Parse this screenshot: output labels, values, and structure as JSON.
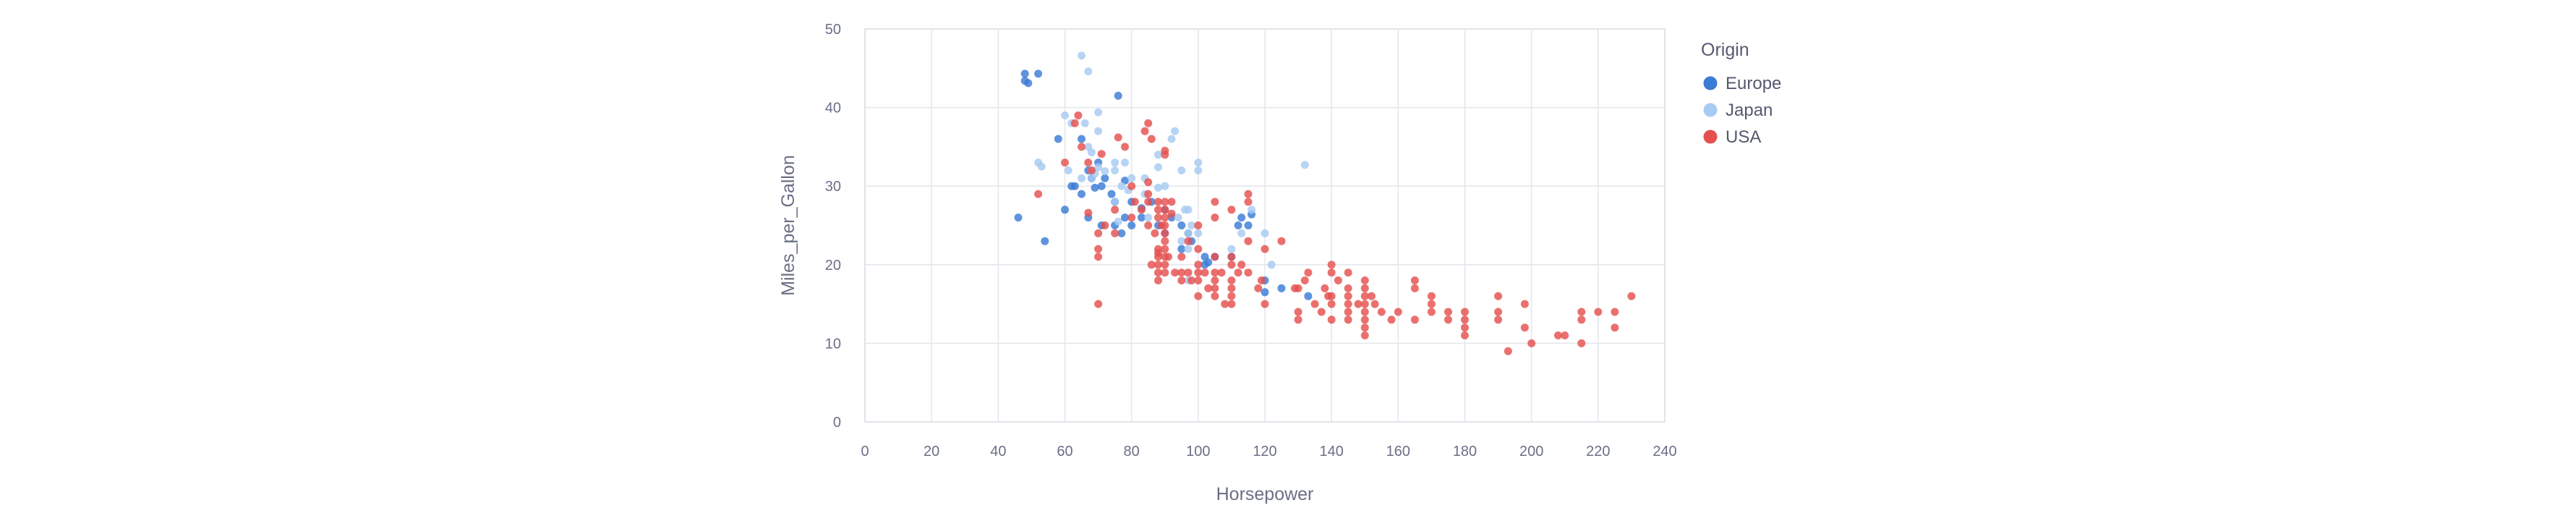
{
  "chart_data": {
    "type": "scatter",
    "xlabel": "Horsepower",
    "ylabel": "Miles_per_Gallon",
    "xlim": [
      0,
      240
    ],
    "ylim": [
      0,
      50
    ],
    "x_ticks": [
      "0",
      "20",
      "40",
      "60",
      "80",
      "100",
      "120",
      "140",
      "160",
      "180",
      "200",
      "220",
      "240"
    ],
    "y_ticks": [
      "0",
      "10",
      "20",
      "30",
      "40",
      "50"
    ],
    "grid": true,
    "legend": {
      "title": "Origin",
      "placement": "right",
      "entries": [
        "Europe",
        "Japan",
        "USA"
      ]
    },
    "series": [
      {
        "name": "Europe",
        "color": "#3a7bd5",
        "points": [
          [
            46,
            26
          ],
          [
            48,
            43.4
          ],
          [
            48,
            44.3
          ],
          [
            49,
            43.1
          ],
          [
            52,
            44.3
          ],
          [
            54,
            23
          ],
          [
            58,
            36
          ],
          [
            60,
            27
          ],
          [
            62,
            30
          ],
          [
            63,
            30
          ],
          [
            65,
            29
          ],
          [
            65,
            36
          ],
          [
            67,
            26
          ],
          [
            67,
            32
          ],
          [
            68,
            31
          ],
          [
            69,
            29.8
          ],
          [
            70,
            33
          ],
          [
            71,
            30
          ],
          [
            71,
            25
          ],
          [
            72,
            31
          ],
          [
            74,
            29
          ],
          [
            75,
            28
          ],
          [
            75,
            25
          ],
          [
            76,
            41.5
          ],
          [
            77,
            24
          ],
          [
            78,
            30.7
          ],
          [
            78,
            26
          ],
          [
            80,
            28
          ],
          [
            80,
            25
          ],
          [
            83,
            27.2
          ],
          [
            83,
            26
          ],
          [
            86,
            28
          ],
          [
            88,
            25
          ],
          [
            90,
            27
          ],
          [
            90,
            24
          ],
          [
            92,
            26
          ],
          [
            95,
            22
          ],
          [
            95,
            25
          ],
          [
            97,
            24
          ],
          [
            98,
            23
          ],
          [
            102,
            20
          ],
          [
            102,
            21
          ],
          [
            103,
            20.3
          ],
          [
            105,
            21
          ],
          [
            110,
            21
          ],
          [
            112,
            25
          ],
          [
            113,
            26
          ],
          [
            115,
            25
          ],
          [
            116,
            26.4
          ],
          [
            120,
            18
          ],
          [
            120,
            16.5
          ],
          [
            125,
            17
          ],
          [
            133,
            16
          ]
        ]
      },
      {
        "name": "Japan",
        "color": "#a7cbf2",
        "points": [
          [
            52,
            33
          ],
          [
            53,
            32.5
          ],
          [
            60,
            39
          ],
          [
            61,
            32
          ],
          [
            62,
            38
          ],
          [
            65,
            31
          ],
          [
            65,
            46.6
          ],
          [
            66,
            38
          ],
          [
            67,
            44.6
          ],
          [
            67,
            35
          ],
          [
            68,
            31
          ],
          [
            68,
            32
          ],
          [
            68,
            34.3
          ],
          [
            69,
            31.6
          ],
          [
            70,
            37
          ],
          [
            70,
            39.4
          ],
          [
            70,
            32.4
          ],
          [
            72,
            31.9
          ],
          [
            75,
            32
          ],
          [
            75,
            33
          ],
          [
            75,
            28
          ],
          [
            76,
            25.5
          ],
          [
            77,
            30
          ],
          [
            78,
            33
          ],
          [
            79,
            29.5
          ],
          [
            80,
            31
          ],
          [
            84,
            29
          ],
          [
            84,
            31
          ],
          [
            85,
            26
          ],
          [
            88,
            29.8
          ],
          [
            88,
            32.4
          ],
          [
            88,
            34
          ],
          [
            90,
            30
          ],
          [
            92,
            36
          ],
          [
            93,
            37
          ],
          [
            94,
            26
          ],
          [
            95,
            23
          ],
          [
            95,
            32
          ],
          [
            96,
            27
          ],
          [
            97,
            22
          ],
          [
            97,
            24
          ],
          [
            97,
            18
          ],
          [
            97,
            27
          ],
          [
            98,
            25
          ],
          [
            100,
            33
          ],
          [
            100,
            24
          ],
          [
            100,
            32
          ],
          [
            110,
            22
          ],
          [
            113,
            24
          ],
          [
            116,
            27
          ],
          [
            120,
            24
          ],
          [
            122,
            20
          ],
          [
            132,
            32.7
          ]
        ]
      },
      {
        "name": "USA",
        "color": "#e5504f",
        "points": [
          [
            52,
            29
          ],
          [
            60,
            33
          ],
          [
            63,
            38
          ],
          [
            64,
            39
          ],
          [
            65,
            35
          ],
          [
            67,
            33
          ],
          [
            67,
            26.6
          ],
          [
            68,
            32
          ],
          [
            70,
            22
          ],
          [
            70,
            24
          ],
          [
            70,
            21
          ],
          [
            70,
            15
          ],
          [
            71,
            34.1
          ],
          [
            72,
            25
          ],
          [
            75,
            27
          ],
          [
            75,
            24
          ],
          [
            76,
            36.2
          ],
          [
            78,
            35
          ],
          [
            80,
            30
          ],
          [
            80,
            26
          ],
          [
            81,
            28
          ],
          [
            83,
            27
          ],
          [
            84,
            37
          ],
          [
            85,
            30.5
          ],
          [
            85,
            29
          ],
          [
            85,
            28
          ],
          [
            85,
            38
          ],
          [
            85,
            25
          ],
          [
            86,
            36
          ],
          [
            86,
            20
          ],
          [
            87,
            24
          ],
          [
            88,
            28
          ],
          [
            88,
            27
          ],
          [
            88,
            26
          ],
          [
            88,
            22
          ],
          [
            88,
            21
          ],
          [
            88,
            20
          ],
          [
            88,
            19
          ],
          [
            88,
            18
          ],
          [
            88,
            21.5
          ],
          [
            89,
            25
          ],
          [
            90,
            28
          ],
          [
            90,
            27
          ],
          [
            90,
            26
          ],
          [
            90,
            25
          ],
          [
            90,
            24
          ],
          [
            90,
            23
          ],
          [
            90,
            22
          ],
          [
            90,
            21
          ],
          [
            90,
            20
          ],
          [
            90,
            19
          ],
          [
            90,
            34.5
          ],
          [
            90,
            34
          ],
          [
            91,
            21
          ],
          [
            92,
            28
          ],
          [
            92,
            26.5
          ],
          [
            93,
            19
          ],
          [
            95,
            21
          ],
          [
            95,
            19
          ],
          [
            95,
            18
          ],
          [
            97,
            23
          ],
          [
            97,
            19
          ],
          [
            98,
            18
          ],
          [
            100,
            22
          ],
          [
            100,
            20
          ],
          [
            100,
            19
          ],
          [
            100,
            18
          ],
          [
            100,
            16
          ],
          [
            100,
            25
          ],
          [
            102,
            19
          ],
          [
            103,
            17
          ],
          [
            105,
            21
          ],
          [
            105,
            19
          ],
          [
            105,
            18
          ],
          [
            105,
            17
          ],
          [
            105,
            16
          ],
          [
            105,
            26
          ],
          [
            105,
            28
          ],
          [
            107,
            19
          ],
          [
            108,
            15
          ],
          [
            110,
            21
          ],
          [
            110,
            18
          ],
          [
            110,
            17
          ],
          [
            110,
            16
          ],
          [
            110,
            15
          ],
          [
            110,
            20
          ],
          [
            110,
            27
          ],
          [
            112,
            19
          ],
          [
            113,
            20
          ],
          [
            115,
            19
          ],
          [
            115,
            23
          ],
          [
            115,
            28
          ],
          [
            115,
            29
          ],
          [
            118,
            17
          ],
          [
            119,
            18
          ],
          [
            120,
            22
          ],
          [
            120,
            15
          ],
          [
            125,
            23
          ],
          [
            129,
            17
          ],
          [
            130,
            17
          ],
          [
            130,
            13
          ],
          [
            130,
            14
          ],
          [
            132,
            18
          ],
          [
            133,
            19
          ],
          [
            135,
            15
          ],
          [
            137,
            14
          ],
          [
            138,
            17
          ],
          [
            139,
            16
          ],
          [
            140,
            20
          ],
          [
            140,
            19
          ],
          [
            140,
            16
          ],
          [
            140,
            15
          ],
          [
            140,
            13
          ],
          [
            142,
            18
          ],
          [
            145,
            19
          ],
          [
            145,
            17
          ],
          [
            145,
            16
          ],
          [
            145,
            15
          ],
          [
            145,
            14
          ],
          [
            145,
            13
          ],
          [
            148,
            15
          ],
          [
            150,
            18
          ],
          [
            150,
            17
          ],
          [
            150,
            16
          ],
          [
            150,
            15
          ],
          [
            150,
            14
          ],
          [
            150,
            13
          ],
          [
            150,
            12
          ],
          [
            150,
            11
          ],
          [
            152,
            16
          ],
          [
            153,
            15
          ],
          [
            155,
            14
          ],
          [
            158,
            13
          ],
          [
            160,
            14
          ],
          [
            165,
            18
          ],
          [
            165,
            17
          ],
          [
            165,
            13
          ],
          [
            170,
            16
          ],
          [
            170,
            15
          ],
          [
            170,
            14
          ],
          [
            175,
            14
          ],
          [
            175,
            13
          ],
          [
            180,
            14
          ],
          [
            180,
            13
          ],
          [
            180,
            12
          ],
          [
            180,
            11
          ],
          [
            190,
            16
          ],
          [
            190,
            14
          ],
          [
            190,
            13
          ],
          [
            193,
            9
          ],
          [
            198,
            15
          ],
          [
            198,
            12
          ],
          [
            200,
            10
          ],
          [
            208,
            11
          ],
          [
            210,
            11
          ],
          [
            215,
            14
          ],
          [
            215,
            13
          ],
          [
            215,
            10
          ],
          [
            220,
            14
          ],
          [
            225,
            14
          ],
          [
            225,
            12
          ],
          [
            230,
            16
          ]
        ]
      }
    ]
  }
}
